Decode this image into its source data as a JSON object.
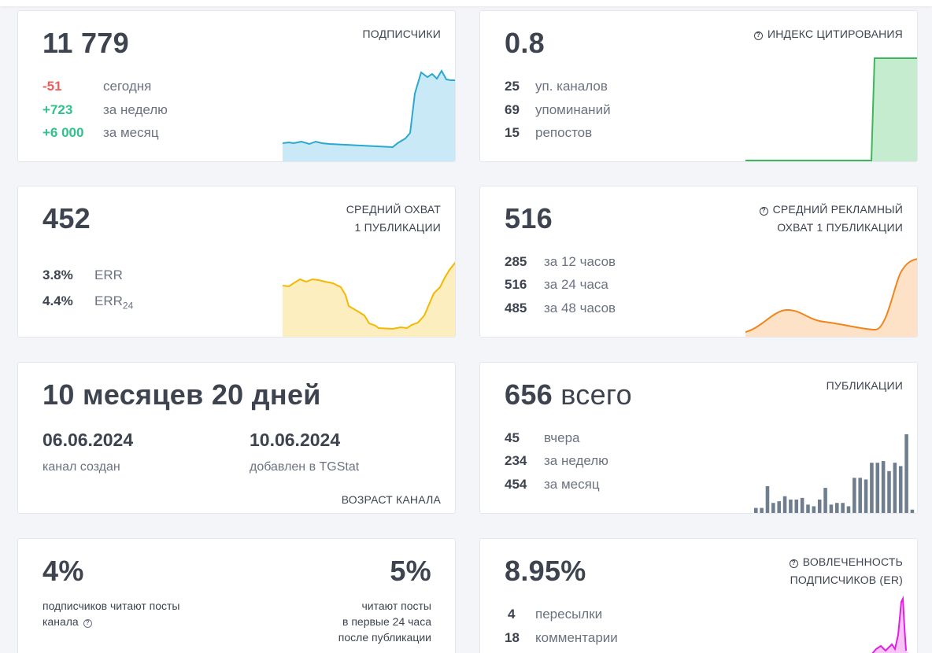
{
  "subscribers": {
    "value": "11 779",
    "title": "ПОДПИСЧИКИ",
    "rows": [
      {
        "num": "-51",
        "label": "сегодня"
      },
      {
        "num": "+723",
        "label": "за неделю"
      },
      {
        "num": "+6 000",
        "label": "за месяц"
      }
    ],
    "colors": {
      "line": "#29a8d0",
      "fill": "#c8e9f5"
    }
  },
  "citation": {
    "value": "0.8",
    "title": "ИНДЕКС ЦИТИРОВАНИЯ",
    "rows": [
      {
        "num": "25",
        "label": "уп. каналов"
      },
      {
        "num": "69",
        "label": "упоминаний"
      },
      {
        "num": "15",
        "label": "репостов"
      }
    ],
    "colors": {
      "line": "#3bb85a",
      "fill": "#c6ecd0"
    }
  },
  "reach": {
    "value": "452",
    "title_line1": "СРЕДНИЙ ОХВАТ",
    "title_line2": "1 ПУБЛИКАЦИИ",
    "rows": [
      {
        "num": "3.8%",
        "label": "ERR"
      },
      {
        "num": "4.4%",
        "label": "ERR",
        "sub": "24"
      }
    ],
    "colors": {
      "line": "#f5b800",
      "fill": "#fdeec0"
    }
  },
  "ad_reach": {
    "value": "516",
    "title_line1": "СРЕДНИЙ РЕКЛАМНЫЙ",
    "title_line2": "ОХВАТ 1 ПУБЛИКАЦИИ",
    "rows": [
      {
        "num": "285",
        "label": "за 12 часов"
      },
      {
        "num": "516",
        "label": "за 24 часа"
      },
      {
        "num": "485",
        "label": "за 48 часов"
      }
    ],
    "colors": {
      "line": "#f0851e",
      "fill": "#fde2c8"
    }
  },
  "age": {
    "value": "10 месяцев 20 дней",
    "created_date": "06.06.2024",
    "created_label": "канал создан",
    "added_date": "10.06.2024",
    "added_label": "добавлен в TGStat",
    "title": "ВОЗРАСТ КАНАЛА"
  },
  "posts": {
    "value_num": "656",
    "value_word": "всего",
    "title": "ПУБЛИКАЦИИ",
    "rows": [
      {
        "num": "45",
        "label": "вчера"
      },
      {
        "num": "234",
        "label": "за неделю"
      },
      {
        "num": "454",
        "label": "за месяц"
      }
    ],
    "bars": [
      3,
      3,
      16,
      6,
      7,
      10,
      8,
      8,
      9,
      5,
      4,
      8,
      15,
      5,
      6,
      6,
      4,
      21,
      21,
      20,
      30,
      30,
      31,
      25,
      30,
      28,
      47,
      2
    ],
    "colors": {
      "bar": "#6e7e8f"
    }
  },
  "reads": {
    "left_value": "4%",
    "left_line1": "подписчиков читают посты",
    "left_line2": "канала",
    "right_value": "5%",
    "right_line1": "читают посты",
    "right_line2": "в первые 24 часа",
    "right_line3": "после публикации"
  },
  "engagement": {
    "value": "8.95%",
    "title_line1": "ВОВЛЕЧЕННОСТЬ",
    "title_line2": "ПОДПИСЧИКОВ (ER)",
    "rows": [
      {
        "num": "4",
        "label": "пересылки"
      },
      {
        "num": "18",
        "label": "комментарии"
      }
    ],
    "colors": {
      "line": "#e020e0",
      "fill": "#f6c4f6"
    }
  }
}
